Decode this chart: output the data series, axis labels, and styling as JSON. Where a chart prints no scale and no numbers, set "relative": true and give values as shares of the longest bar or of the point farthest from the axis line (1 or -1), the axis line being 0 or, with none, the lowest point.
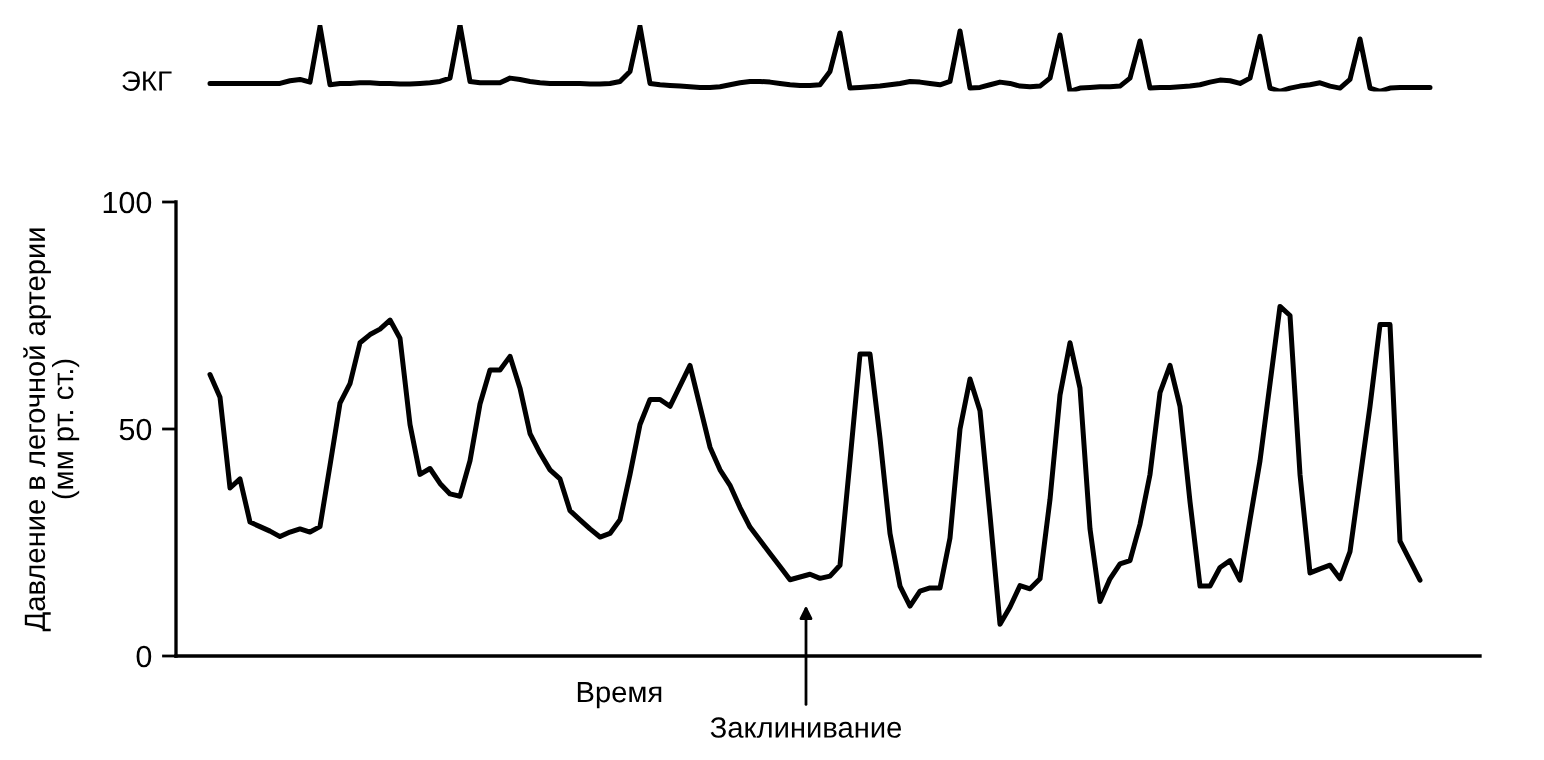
{
  "chart_data": [
    {
      "type": "line",
      "relative": true,
      "ylabel": "ЭКГ",
      "tick_labels": false,
      "grid": false,
      "legend": false,
      "categories": [
        null,
        null,
        null,
        null,
        null,
        null,
        null,
        null,
        null,
        null,
        null,
        null,
        null,
        null,
        null,
        null,
        null,
        null,
        null,
        null,
        null,
        null,
        null,
        null,
        null,
        null,
        null,
        null,
        null,
        null,
        null,
        null,
        null,
        null,
        null,
        null,
        null,
        null,
        null,
        null,
        null,
        null,
        null,
        null,
        null,
        null,
        null,
        null,
        null,
        null,
        null,
        null,
        null,
        null,
        null,
        null,
        null,
        null,
        null,
        null,
        null,
        null,
        null,
        null,
        null,
        null,
        null,
        null,
        null,
        null,
        null,
        null,
        null,
        null,
        null,
        null,
        null,
        null,
        null,
        null,
        null,
        null,
        null,
        null,
        null,
        null,
        null,
        null,
        null,
        null,
        null,
        null,
        null,
        null,
        null,
        null,
        null,
        null,
        null,
        null,
        null,
        null,
        null,
        null,
        null,
        null,
        null,
        null,
        null,
        null,
        null,
        null,
        null,
        null,
        null,
        null,
        null,
        null,
        null,
        null,
        null,
        null,
        null
      ],
      "series": [
        {
          "color": "#000000",
          "values": [
            0.12,
            0.12,
            0.12,
            0.12,
            0.12,
            0.12,
            0.12,
            0.12,
            0.16,
            0.18,
            0.14,
            0.98,
            0.1,
            0.12,
            0.12,
            0.13,
            0.13,
            0.12,
            0.12,
            0.11,
            0.11,
            0.12,
            0.13,
            0.15,
            0.2,
            1.0,
            0.15,
            0.13,
            0.13,
            0.13,
            0.2,
            0.18,
            0.15,
            0.13,
            0.12,
            0.12,
            0.12,
            0.12,
            0.11,
            0.11,
            0.12,
            0.15,
            0.3,
            0.98,
            0.12,
            0.1,
            0.09,
            0.08,
            0.07,
            0.06,
            0.06,
            0.07,
            0.1,
            0.13,
            0.15,
            0.15,
            0.14,
            0.12,
            0.1,
            0.09,
            0.09,
            0.1,
            0.3,
            0.88,
            0.05,
            0.06,
            0.07,
            0.08,
            0.1,
            0.12,
            0.15,
            0.14,
            0.12,
            0.1,
            0.15,
            0.91,
            0.05,
            0.06,
            0.1,
            0.14,
            0.12,
            0.08,
            0.07,
            0.08,
            0.2,
            0.85,
            0,
            0.05,
            0.06,
            0.07,
            0.07,
            0.08,
            0.2,
            0.76,
            0.05,
            0.06,
            0.06,
            0.07,
            0.08,
            0.1,
            0.14,
            0.17,
            0.16,
            0.12,
            0.2,
            0.83,
            0.05,
            0,
            0.05,
            0.08,
            0.1,
            0.13,
            0.08,
            0.05,
            0.18,
            0.79,
            0.05,
            0,
            0.05,
            0.06,
            0.06,
            0.06,
            0.06
          ]
        }
      ]
    },
    {
      "type": "line",
      "xlabel": "Время",
      "ylabel": "Давление в легочной артерии\n(мм рт. ст.)",
      "ylim": [
        0,
        100
      ],
      "yticks": [
        0,
        50,
        100
      ],
      "tick_labels": "y",
      "grid": false,
      "legend": false,
      "annotations": [
        "Заклинивание"
      ],
      "categories": [
        null,
        null,
        null,
        null,
        null,
        null,
        null,
        null,
        null,
        null,
        null,
        null,
        null,
        null,
        null,
        null,
        null,
        null,
        null,
        null,
        null,
        null,
        null,
        null,
        null,
        null,
        null,
        null,
        null,
        null,
        null,
        null,
        null,
        null,
        null,
        null,
        null,
        null,
        null,
        null,
        null,
        null,
        null,
        null,
        null,
        null,
        null,
        null,
        null,
        null,
        null,
        null,
        null,
        null,
        null,
        null,
        null,
        null,
        null,
        null,
        null,
        null,
        null,
        null,
        null,
        null,
        null,
        null,
        null,
        null,
        null,
        null,
        null,
        null,
        null,
        null,
        null,
        null,
        null,
        null,
        null,
        null,
        null,
        null,
        null,
        null,
        null,
        null,
        null,
        null,
        null,
        null,
        null,
        null,
        null,
        null,
        null,
        null,
        null,
        null,
        null,
        null,
        null,
        null,
        null,
        null,
        null,
        null,
        null,
        null,
        null,
        null,
        null,
        null,
        null,
        null,
        null,
        null,
        null,
        null,
        null,
        null
      ],
      "series": [
        {
          "color": "#000000",
          "values": [
            62,
            57,
            37,
            39,
            29.5,
            28.5,
            27.5,
            26.3,
            27.3,
            28,
            27.3,
            28.5,
            42,
            55.7,
            60,
            69,
            70.8,
            72,
            74,
            70,
            51,
            40,
            41.3,
            38,
            35.7,
            35.2,
            43,
            55.5,
            63,
            63,
            66,
            59,
            49,
            44.7,
            41,
            39,
            32,
            30,
            28,
            26.2,
            27,
            30,
            40,
            51,
            56.5,
            56.5,
            55,
            59.5,
            64,
            55,
            46,
            41,
            37.6,
            32.7,
            28.4,
            25.5,
            22.6,
            19.7,
            16.8,
            17.4,
            18,
            17.1,
            17.6,
            20,
            43,
            66.5,
            66.5,
            48,
            27,
            15.4,
            11,
            14.3,
            15,
            15,
            26,
            50,
            61,
            54,
            31,
            7,
            10.8,
            15.5,
            14.8,
            17,
            34.5,
            57.5,
            69,
            59,
            28,
            12,
            17,
            20.3,
            21,
            29,
            40,
            58,
            64,
            55,
            34,
            15.4,
            15.4,
            19.5,
            21,
            16.7,
            30,
            43,
            60,
            77,
            75,
            40,
            18.3,
            19.2,
            20,
            17,
            23,
            39,
            55,
            73,
            73,
            25.3,
            21,
            16.7
          ]
        }
      ]
    }
  ]
}
